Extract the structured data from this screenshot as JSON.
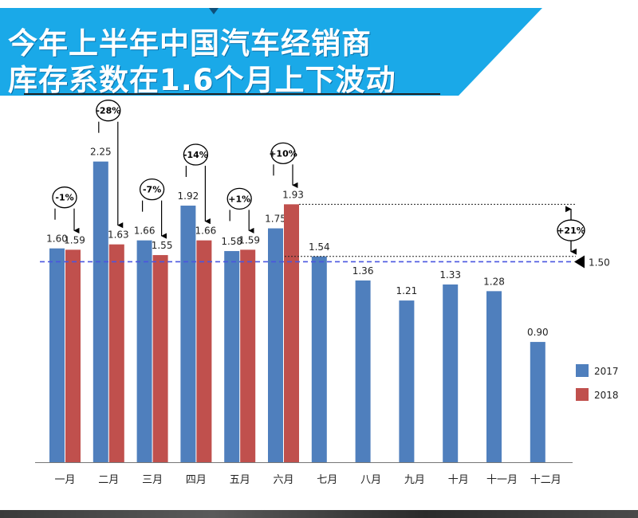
{
  "header": {
    "line1": "今年上半年中国汽车经销商",
    "line2": "库存系数在1.6个月上下波动"
  },
  "colors": {
    "banner": "#1aa9e8",
    "series_2017": "#4f7fbd",
    "series_2018": "#c0504d",
    "reference": "#4a56e0"
  },
  "chart_data": {
    "type": "bar",
    "categories": [
      "一月",
      "二月",
      "三月",
      "四月",
      "五月",
      "六月",
      "七月",
      "八月",
      "九月",
      "十月",
      "十一月",
      "十二月"
    ],
    "series": [
      {
        "name": "2017",
        "values": [
          1.6,
          2.25,
          1.66,
          1.92,
          1.58,
          1.75,
          1.54,
          1.36,
          1.21,
          1.33,
          1.28,
          0.9
        ]
      },
      {
        "name": "2018",
        "values": [
          1.59,
          1.63,
          1.55,
          1.66,
          1.59,
          1.93,
          null,
          null,
          null,
          null,
          null,
          null
        ]
      }
    ],
    "value_labels": {
      "2017": [
        "1.60",
        "2.25",
        "1.66",
        "1.92",
        "1.58",
        "1.75",
        "1.54",
        "1.36",
        "1.21",
        "1.33",
        "1.28",
        "0.90"
      ],
      "2018": [
        "1.59",
        "1.63",
        "1.55",
        "1.66",
        "1.59",
        "1.93"
      ]
    },
    "changes": [
      "-1%",
      "-28%",
      "-7%",
      "-14%",
      "+1%",
      "+10%"
    ],
    "reference_line": {
      "value": 1.5,
      "label": "1.50"
    },
    "annotation": {
      "label": "+21%"
    },
    "ylim": [
      0,
      2.6
    ],
    "legend_position": "right",
    "title": "",
    "xlabel": "",
    "ylabel": ""
  }
}
